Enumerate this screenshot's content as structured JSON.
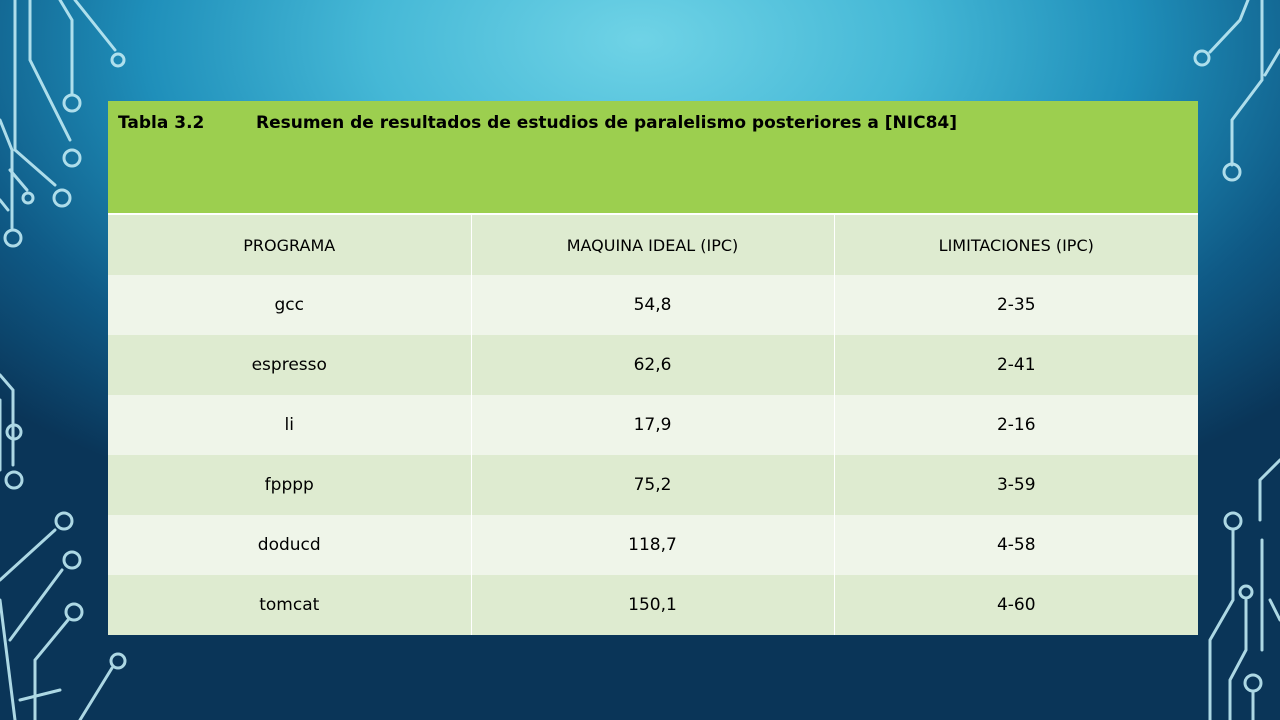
{
  "table": {
    "title_number": "Tabla 3.2",
    "title_text": "Resumen de resultados de estudios de paralelismo posteriores a [NIC84]",
    "columns": [
      "PROGRAMA",
      "MAQUINA IDEAL (IPC)",
      "LIMITACIONES (IPC)"
    ],
    "rows": [
      [
        "gcc",
        "54,8",
        "2-35"
      ],
      [
        "espresso",
        "62,6",
        "2-41"
      ],
      [
        "li",
        "17,9",
        "2-16"
      ],
      [
        "fpppp",
        "75,2",
        "3-59"
      ],
      [
        "doducd",
        "118,7",
        "4-58"
      ],
      [
        "tomcat",
        "150,1",
        "4-60"
      ]
    ]
  },
  "theme": {
    "title_band_color": "#9ccf4f",
    "row_dark_color": "#deebd0",
    "row_light_color": "#eff5e9"
  },
  "decoration": {
    "icon": "circuit-lines-icon"
  }
}
